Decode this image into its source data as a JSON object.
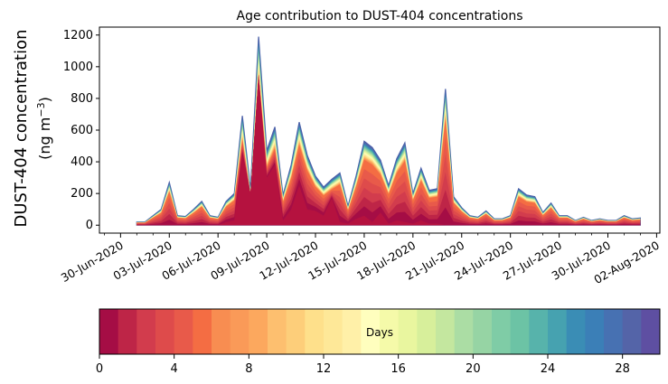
{
  "chart_data": {
    "type": "area",
    "title": "Age contribution to DUST-404 concentrations",
    "ylabel_line1": "DUST-404 concentration",
    "ylabel_line2_prefix": "(ng m",
    "ylabel_line2_sup": "−3",
    "ylabel_line2_suffix": ")",
    "xlabel": "",
    "ylim": [
      -50,
      1250
    ],
    "yticks": [
      0,
      200,
      400,
      600,
      800,
      1000,
      1200
    ],
    "xlim_day": [
      -1.3,
      33.2
    ],
    "xticks": [
      {
        "day": 0,
        "label": "30-Jun-2020"
      },
      {
        "day": 3,
        "label": "03-Jul-2020"
      },
      {
        "day": 6,
        "label": "06-Jul-2020"
      },
      {
        "day": 9,
        "label": "09-Jul-2020"
      },
      {
        "day": 12,
        "label": "12-Jul-2020"
      },
      {
        "day": 15,
        "label": "15-Jul-2020"
      },
      {
        "day": 18,
        "label": "18-Jul-2020"
      },
      {
        "day": 21,
        "label": "21-Jul-2020"
      },
      {
        "day": 24,
        "label": "24-Jul-2020"
      },
      {
        "day": 27,
        "label": "27-Jul-2020"
      },
      {
        "day": 30,
        "label": "30-Jul-2020"
      },
      {
        "day": 33,
        "label": "02-Aug-2020"
      }
    ],
    "x_day": [
      1,
      1.5,
      2,
      2.5,
      3,
      3.5,
      4,
      4.5,
      5,
      5.5,
      6,
      6.5,
      7,
      7.5,
      8,
      8.5,
      9,
      9.5,
      10,
      10.5,
      11,
      11.5,
      12,
      12.5,
      13,
      13.5,
      14,
      14.5,
      15,
      15.5,
      16,
      16.5,
      17,
      17.5,
      18,
      18.5,
      19,
      19.5,
      20,
      20.5,
      21,
      21.5,
      22,
      22.5,
      23,
      23.5,
      24,
      24.5,
      25,
      25.5,
      26,
      26.5,
      27,
      27.5,
      28,
      28.5,
      29,
      29.5,
      30,
      30.5,
      31,
      31.5,
      32
    ],
    "total": [
      20,
      20,
      60,
      100,
      270,
      60,
      55,
      100,
      150,
      60,
      50,
      150,
      200,
      690,
      230,
      1190,
      470,
      620,
      190,
      380,
      650,
      440,
      310,
      240,
      290,
      330,
      120,
      310,
      530,
      490,
      410,
      250,
      420,
      520,
      200,
      360,
      220,
      230,
      860,
      180,
      110,
      60,
      50,
      90,
      40,
      40,
      60,
      230,
      190,
      180,
      80,
      140,
      60,
      60,
      30,
      50,
      30,
      40,
      30,
      30,
      60,
      40,
      45
    ],
    "young": [
      0,
      0,
      0,
      0,
      0,
      0,
      0,
      0,
      0,
      0,
      0,
      20,
      30,
      450,
      200,
      950,
      300,
      380,
      30,
      100,
      250,
      100,
      90,
      60,
      170,
      20,
      10,
      40,
      60,
      20,
      80,
      10,
      30,
      20,
      10,
      30,
      10,
      10,
      0,
      0,
      0,
      0,
      0,
      0,
      0,
      0,
      0,
      0,
      0,
      0,
      0,
      0,
      0,
      0,
      0,
      0,
      0,
      0,
      0,
      0,
      0,
      0,
      0
    ],
    "colorbar": {
      "label": "Days",
      "min": 0,
      "max": 30,
      "ticks": [
        0,
        4,
        8,
        12,
        16,
        20,
        24,
        28
      ],
      "colors": [
        "#a50d45",
        "#be2547",
        "#d23c4d",
        "#de4b4b",
        "#e85a4a",
        "#f46d43",
        "#f88d51",
        "#fa9a58",
        "#fca85e",
        "#fdbf6f",
        "#fdce7a",
        "#fee08b",
        "#fee898",
        "#fff0a8",
        "#fffebe",
        "#f5faa9",
        "#e9f69f",
        "#d7ef9b",
        "#c4e79f",
        "#abdda4",
        "#96d4a4",
        "#7fcca6",
        "#6cc3a5",
        "#57b3ab",
        "#46a2b0",
        "#3a8db5",
        "#3b7fb7",
        "#4771b2",
        "#5464a8",
        "#5e4fa2"
      ]
    }
  }
}
